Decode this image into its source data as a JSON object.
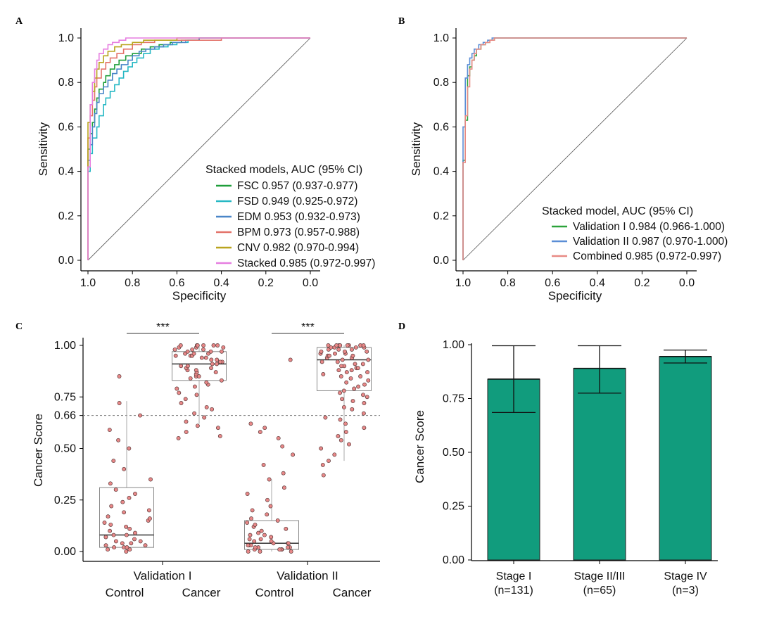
{
  "chart_data": [
    {
      "panel": "A",
      "type": "line",
      "xlabel": "Specificity",
      "ylabel": "Sensitivity",
      "xlim": [
        1.0,
        0.0
      ],
      "ylim": [
        0.0,
        1.0
      ],
      "x_ticks": [
        "1.0",
        "0.8",
        "0.6",
        "0.4",
        "0.2",
        "0.0"
      ],
      "y_ticks": [
        "0.0",
        "0.2",
        "0.4",
        "0.6",
        "0.8",
        "1.0"
      ],
      "legend_title": "Stacked models, AUC (95% CI)",
      "legend_position": "bottom-right",
      "series": [
        {
          "name": "FSC",
          "label": "FSC 0.957 (0.937-0.977)",
          "color": "#1f9e3a",
          "x": [
            1.0,
            1.0,
            0.99,
            0.98,
            0.97,
            0.96,
            0.95,
            0.93,
            0.92,
            0.9,
            0.88,
            0.86,
            0.83,
            0.8,
            0.76,
            0.72,
            0.68,
            0.63,
            0.58,
            0.5,
            0.4,
            0.3,
            0.2,
            0.1,
            0.0
          ],
          "y": [
            0.0,
            0.5,
            0.57,
            0.62,
            0.68,
            0.73,
            0.77,
            0.8,
            0.83,
            0.86,
            0.88,
            0.9,
            0.92,
            0.93,
            0.95,
            0.96,
            0.97,
            0.98,
            0.99,
            1.0,
            1.0,
            1.0,
            1.0,
            1.0,
            1.0
          ]
        },
        {
          "name": "FSD",
          "label": "FSD 0.949 (0.925-0.972)",
          "color": "#26b8c4",
          "x": [
            1.0,
            1.0,
            0.99,
            0.98,
            0.96,
            0.95,
            0.93,
            0.92,
            0.9,
            0.88,
            0.86,
            0.84,
            0.82,
            0.8,
            0.78,
            0.75,
            0.72,
            0.68,
            0.64,
            0.6,
            0.55,
            0.5,
            0.4,
            0.2,
            0.0
          ],
          "y": [
            0.0,
            0.4,
            0.48,
            0.55,
            0.6,
            0.65,
            0.7,
            0.73,
            0.76,
            0.79,
            0.82,
            0.85,
            0.87,
            0.89,
            0.91,
            0.93,
            0.95,
            0.96,
            0.97,
            0.98,
            0.99,
            1.0,
            1.0,
            1.0,
            1.0
          ]
        },
        {
          "name": "EDM",
          "label": "EDM 0.953 (0.932-0.973)",
          "color": "#4a86c8",
          "x": [
            1.0,
            1.0,
            0.99,
            0.98,
            0.97,
            0.96,
            0.95,
            0.93,
            0.91,
            0.89,
            0.87,
            0.85,
            0.82,
            0.8,
            0.77,
            0.74,
            0.7,
            0.66,
            0.62,
            0.56,
            0.5,
            0.4,
            0.2,
            0.0
          ],
          "y": [
            0.0,
            0.45,
            0.52,
            0.6,
            0.66,
            0.71,
            0.75,
            0.78,
            0.81,
            0.84,
            0.86,
            0.88,
            0.9,
            0.92,
            0.94,
            0.95,
            0.96,
            0.97,
            0.98,
            0.99,
            1.0,
            1.0,
            1.0,
            1.0
          ]
        },
        {
          "name": "BPM",
          "label": "BPM 0.973 (0.957-0.988)",
          "color": "#e3736a",
          "x": [
            1.0,
            1.0,
            0.99,
            0.98,
            0.97,
            0.96,
            0.94,
            0.92,
            0.9,
            0.87,
            0.84,
            0.8,
            0.76,
            0.7,
            0.6,
            0.5,
            0.4,
            0.3,
            0.2,
            0.0
          ],
          "y": [
            0.0,
            0.55,
            0.65,
            0.72,
            0.78,
            0.82,
            0.86,
            0.89,
            0.91,
            0.93,
            0.95,
            0.97,
            0.98,
            0.99,
            0.99,
            0.99,
            1.0,
            1.0,
            1.0,
            1.0
          ],
          "note": "curve reaches 1.0 near specificity 0.30"
        },
        {
          "name": "CNV",
          "label": "CNV 0.982 (0.970-0.994)",
          "color": "#b9a41f",
          "x": [
            1.0,
            1.0,
            0.99,
            0.98,
            0.97,
            0.96,
            0.95,
            0.93,
            0.91,
            0.88,
            0.85,
            0.8,
            0.75,
            0.7,
            0.6,
            0.5,
            0.4,
            0.2,
            0.0
          ],
          "y": [
            0.0,
            0.62,
            0.7,
            0.76,
            0.82,
            0.86,
            0.89,
            0.92,
            0.94,
            0.96,
            0.97,
            0.98,
            0.99,
            0.99,
            1.0,
            1.0,
            1.0,
            1.0,
            1.0
          ]
        },
        {
          "name": "Stacked",
          "label": "Stacked 0.985 (0.972-0.997)",
          "color": "#e67ee0",
          "x": [
            1.0,
            1.0,
            0.99,
            0.99,
            0.98,
            0.97,
            0.96,
            0.95,
            0.93,
            0.91,
            0.89,
            0.86,
            0.83,
            0.8,
            0.7,
            0.5,
            0.2,
            0.0
          ],
          "y": [
            0.0,
            0.42,
            0.55,
            0.7,
            0.8,
            0.86,
            0.9,
            0.93,
            0.95,
            0.97,
            0.98,
            0.99,
            1.0,
            1.0,
            1.0,
            1.0,
            1.0,
            1.0
          ]
        }
      ],
      "reference_line": "diagonal"
    },
    {
      "panel": "B",
      "type": "line",
      "xlabel": "Specificity",
      "ylabel": "Sensitivity",
      "xlim": [
        1.0,
        0.0
      ],
      "ylim": [
        0.0,
        1.0
      ],
      "x_ticks": [
        "1.0",
        "0.8",
        "0.6",
        "0.4",
        "0.2",
        "0.0"
      ],
      "y_ticks": [
        "0.0",
        "0.2",
        "0.4",
        "0.6",
        "0.8",
        "1.0"
      ],
      "legend_title": "Stacked model, AUC (95% CI)",
      "legend_position": "bottom-right",
      "series": [
        {
          "name": "Validation I",
          "label": "Validation I 0.984 (0.966-1.000)",
          "color": "#2ca33a",
          "x": [
            1.0,
            1.0,
            0.99,
            0.99,
            0.98,
            0.98,
            0.97,
            0.96,
            0.95,
            0.94,
            0.92,
            0.9,
            0.88,
            0.86,
            0.84,
            0.82,
            0.0
          ],
          "y": [
            0.0,
            0.45,
            0.6,
            0.63,
            0.7,
            0.83,
            0.87,
            0.9,
            0.92,
            0.95,
            0.97,
            0.98,
            0.99,
            1.0,
            1.0,
            1.0,
            1.0
          ]
        },
        {
          "name": "Validation II",
          "label": "Validation II 0.987 (0.970-1.000)",
          "color": "#5b8ed6",
          "x": [
            1.0,
            1.0,
            0.99,
            0.99,
            0.98,
            0.97,
            0.96,
            0.95,
            0.93,
            0.91,
            0.89,
            0.87,
            0.85,
            0.0
          ],
          "y": [
            0.0,
            0.6,
            0.7,
            0.82,
            0.88,
            0.91,
            0.93,
            0.95,
            0.97,
            0.98,
            0.99,
            1.0,
            1.0,
            1.0
          ]
        },
        {
          "name": "Combined",
          "label": "Combined 0.985 (0.972-0.997)",
          "color": "#e88a84",
          "x": [
            1.0,
            1.0,
            0.99,
            0.99,
            0.98,
            0.97,
            0.96,
            0.95,
            0.94,
            0.92,
            0.9,
            0.88,
            0.86,
            0.84,
            0.0
          ],
          "y": [
            0.0,
            0.44,
            0.55,
            0.65,
            0.78,
            0.86,
            0.9,
            0.93,
            0.95,
            0.97,
            0.98,
            0.99,
            1.0,
            1.0,
            1.0
          ]
        }
      ],
      "reference_line": "diagonal"
    },
    {
      "panel": "C",
      "type": "box",
      "ylabel": "Cancer Score",
      "y_ticks": [
        "0.00",
        "0.25",
        "0.50",
        "0.66",
        "0.75",
        "1.00"
      ],
      "ylim": [
        0.0,
        1.0
      ],
      "threshold": 0.66,
      "groups": [
        "Validation I",
        "Validation II"
      ],
      "categories": [
        "Control",
        "Cancer",
        "Control",
        "Cancer"
      ],
      "boxes": [
        {
          "group": "Validation I",
          "category": "Control",
          "q1": 0.02,
          "median": 0.08,
          "q3": 0.31,
          "whisker_low": 0.0,
          "whisker_high": 0.73
        },
        {
          "group": "Validation I",
          "category": "Cancer",
          "q1": 0.83,
          "median": 0.91,
          "q3": 0.97,
          "whisker_low": 0.62,
          "whisker_high": 1.0
        },
        {
          "group": "Validation II",
          "category": "Control",
          "q1": 0.01,
          "median": 0.04,
          "q3": 0.15,
          "whisker_low": 0.0,
          "whisker_high": 0.35
        },
        {
          "group": "Validation II",
          "category": "Cancer",
          "q1": 0.78,
          "median": 0.93,
          "q3": 0.99,
          "whisker_low": 0.44,
          "whisker_high": 1.0
        }
      ],
      "points": [
        [
          0.0,
          0.01,
          0.01,
          0.02,
          0.02,
          0.02,
          0.03,
          0.03,
          0.04,
          0.04,
          0.05,
          0.05,
          0.06,
          0.07,
          0.08,
          0.08,
          0.09,
          0.1,
          0.11,
          0.12,
          0.13,
          0.14,
          0.15,
          0.16,
          0.17,
          0.19,
          0.2,
          0.22,
          0.24,
          0.26,
          0.28,
          0.3,
          0.33,
          0.35,
          0.4,
          0.44,
          0.5,
          0.54,
          0.59,
          0.66,
          0.72,
          0.85
        ],
        [
          0.55,
          0.56,
          0.58,
          0.6,
          0.61,
          0.63,
          0.65,
          0.67,
          0.69,
          0.7,
          0.72,
          0.74,
          0.76,
          0.77,
          0.79,
          0.8,
          0.81,
          0.82,
          0.83,
          0.84,
          0.85,
          0.85,
          0.86,
          0.87,
          0.87,
          0.88,
          0.88,
          0.89,
          0.89,
          0.9,
          0.9,
          0.91,
          0.91,
          0.92,
          0.92,
          0.93,
          0.93,
          0.94,
          0.94,
          0.95,
          0.95,
          0.95,
          0.96,
          0.96,
          0.96,
          0.97,
          0.97,
          0.97,
          0.98,
          0.98,
          0.98,
          0.99,
          0.99,
          0.99,
          1.0,
          1.0,
          1.0,
          1.0,
          1.0,
          1.0
        ],
        [
          0.0,
          0.0,
          0.0,
          0.01,
          0.01,
          0.01,
          0.01,
          0.02,
          0.02,
          0.02,
          0.02,
          0.03,
          0.03,
          0.03,
          0.04,
          0.04,
          0.04,
          0.05,
          0.05,
          0.06,
          0.06,
          0.07,
          0.08,
          0.08,
          0.09,
          0.1,
          0.11,
          0.12,
          0.13,
          0.14,
          0.15,
          0.16,
          0.18,
          0.2,
          0.22,
          0.25,
          0.28,
          0.31,
          0.35,
          0.38,
          0.42,
          0.47,
          0.51,
          0.55,
          0.58,
          0.6,
          0.62,
          0.93
        ],
        [
          0.37,
          0.42,
          0.44,
          0.47,
          0.5,
          0.52,
          0.54,
          0.56,
          0.58,
          0.6,
          0.62,
          0.64,
          0.65,
          0.67,
          0.69,
          0.7,
          0.72,
          0.73,
          0.74,
          0.75,
          0.76,
          0.77,
          0.78,
          0.79,
          0.8,
          0.81,
          0.82,
          0.83,
          0.84,
          0.85,
          0.85,
          0.86,
          0.87,
          0.87,
          0.88,
          0.88,
          0.89,
          0.89,
          0.9,
          0.9,
          0.91,
          0.91,
          0.92,
          0.92,
          0.93,
          0.93,
          0.94,
          0.94,
          0.95,
          0.95,
          0.95,
          0.96,
          0.96,
          0.96,
          0.97,
          0.97,
          0.97,
          0.98,
          0.98,
          0.98,
          0.99,
          0.99,
          0.99,
          0.99,
          1.0,
          1.0,
          1.0,
          1.0,
          1.0,
          1.0,
          1.0,
          1.0
        ]
      ],
      "significance": [
        "***",
        "***"
      ],
      "colors": {
        "point": "#e88888",
        "box": "#444444",
        "threshold": "#666666"
      }
    },
    {
      "panel": "D",
      "type": "bar",
      "ylabel": "Cancer Score",
      "ylim": [
        0.0,
        1.0
      ],
      "y_ticks": [
        "0.00",
        "0.25",
        "0.50",
        "0.75",
        "1.00"
      ],
      "categories": [
        "Stage I",
        "Stage II/III",
        "Stage IV"
      ],
      "category_counts": [
        "(n=131)",
        "(n=65)",
        "(n=3)"
      ],
      "values": [
        0.84,
        0.89,
        0.945
      ],
      "error_low": [
        0.685,
        0.775,
        0.915
      ],
      "error_high": [
        0.995,
        0.995,
        0.975
      ],
      "colors": {
        "bar": "#119c7d",
        "edge": "#222222"
      }
    }
  ]
}
